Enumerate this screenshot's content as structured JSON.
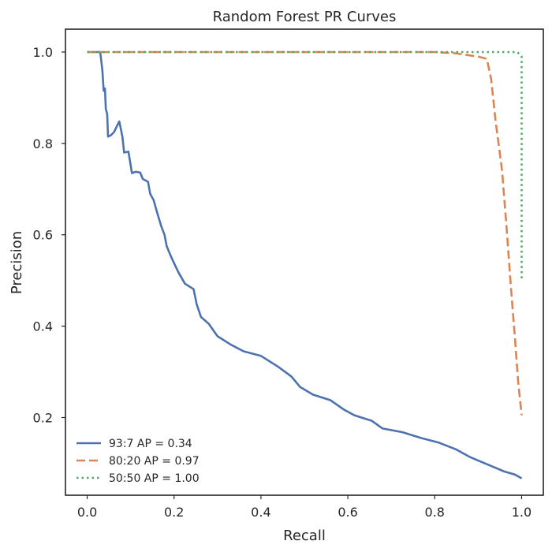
{
  "chart_data": {
    "type": "line",
    "title": "Random Forest PR Curves",
    "xlabel": "Recall",
    "ylabel": "Precision",
    "xlim": [
      -0.05,
      1.05
    ],
    "ylim": [
      0.03,
      1.05
    ],
    "xticks": [
      0.0,
      0.2,
      0.4,
      0.6,
      0.8,
      1.0
    ],
    "xtick_labels": [
      "0.0",
      "0.2",
      "0.4",
      "0.6",
      "0.8",
      "1.0"
    ],
    "yticks": [
      0.2,
      0.4,
      0.6,
      0.8,
      1.0
    ],
    "ytick_labels": [
      "0.2",
      "0.4",
      "0.6",
      "0.8",
      "1.0"
    ],
    "grid": false,
    "legend_position": "bottom-left",
    "series": [
      {
        "name": "93:7 AP = 0.34",
        "color": "#4c72b0",
        "style": "solid",
        "points": [
          [
            0.0,
            1.0
          ],
          [
            0.03,
            1.0
          ],
          [
            0.035,
            0.96
          ],
          [
            0.038,
            0.915
          ],
          [
            0.041,
            0.92
          ],
          [
            0.043,
            0.875
          ],
          [
            0.046,
            0.865
          ],
          [
            0.048,
            0.815
          ],
          [
            0.055,
            0.818
          ],
          [
            0.062,
            0.825
          ],
          [
            0.068,
            0.837
          ],
          [
            0.074,
            0.848
          ],
          [
            0.081,
            0.815
          ],
          [
            0.085,
            0.78
          ],
          [
            0.095,
            0.782
          ],
          [
            0.103,
            0.735
          ],
          [
            0.112,
            0.738
          ],
          [
            0.122,
            0.736
          ],
          [
            0.128,
            0.722
          ],
          [
            0.14,
            0.716
          ],
          [
            0.145,
            0.69
          ],
          [
            0.153,
            0.676
          ],
          [
            0.16,
            0.652
          ],
          [
            0.17,
            0.62
          ],
          [
            0.178,
            0.6
          ],
          [
            0.183,
            0.575
          ],
          [
            0.195,
            0.548
          ],
          [
            0.21,
            0.518
          ],
          [
            0.225,
            0.493
          ],
          [
            0.245,
            0.481
          ],
          [
            0.252,
            0.448
          ],
          [
            0.262,
            0.42
          ],
          [
            0.28,
            0.405
          ],
          [
            0.3,
            0.378
          ],
          [
            0.33,
            0.36
          ],
          [
            0.36,
            0.345
          ],
          [
            0.4,
            0.335
          ],
          [
            0.44,
            0.311
          ],
          [
            0.47,
            0.29
          ],
          [
            0.49,
            0.267
          ],
          [
            0.52,
            0.25
          ],
          [
            0.56,
            0.238
          ],
          [
            0.59,
            0.218
          ],
          [
            0.615,
            0.205
          ],
          [
            0.655,
            0.193
          ],
          [
            0.68,
            0.176
          ],
          [
            0.725,
            0.168
          ],
          [
            0.77,
            0.155
          ],
          [
            0.81,
            0.145
          ],
          [
            0.85,
            0.13
          ],
          [
            0.88,
            0.114
          ],
          [
            0.91,
            0.102
          ],
          [
            0.935,
            0.092
          ],
          [
            0.96,
            0.082
          ],
          [
            0.985,
            0.075
          ],
          [
            1.0,
            0.067
          ]
        ]
      },
      {
        "name": "80:20 AP = 0.97",
        "color": "#dd8452",
        "style": "dashed",
        "points": [
          [
            0.0,
            1.0
          ],
          [
            0.8,
            1.0
          ],
          [
            0.85,
            0.997
          ],
          [
            0.9,
            0.99
          ],
          [
            0.92,
            0.985
          ],
          [
            0.93,
            0.94
          ],
          [
            0.94,
            0.85
          ],
          [
            0.955,
            0.74
          ],
          [
            0.965,
            0.62
          ],
          [
            0.975,
            0.49
          ],
          [
            0.985,
            0.37
          ],
          [
            0.992,
            0.28
          ],
          [
            1.0,
            0.205
          ]
        ]
      },
      {
        "name": "50:50 AP = 1.00",
        "color": "#55a868",
        "style": "dotted",
        "points": [
          [
            0.0,
            1.0
          ],
          [
            0.99,
            1.0
          ],
          [
            0.995,
            0.995
          ],
          [
            1.0,
            0.99
          ],
          [
            1.0,
            0.5
          ]
        ]
      }
    ]
  }
}
